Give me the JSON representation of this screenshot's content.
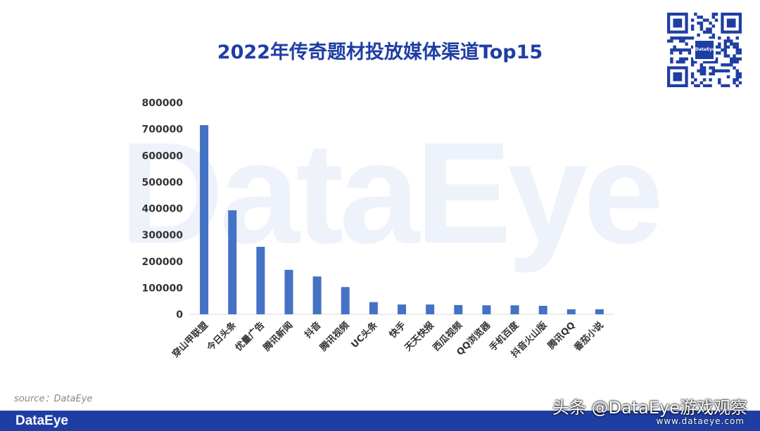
{
  "watermark": "DataEye",
  "title": "2022年传奇题材投放媒体渠道Top15",
  "source": "source：DataEye",
  "footer": {
    "logo": "DataEye",
    "overlay_text": "头条 @DataEye游戏观察",
    "overlay_url": "www.dataeye.com"
  },
  "qr_code": {
    "logo_text": "DataEye"
  },
  "colors": {
    "bar": "#4472c4",
    "title": "#1f3ea4",
    "footer": "#1f3ea4"
  },
  "chart_data": {
    "type": "bar",
    "title": "2022年传奇题材投放媒体渠道Top15",
    "xlabel": "",
    "ylabel": "",
    "ylim": [
      0,
      800000
    ],
    "yticks": [
      "0",
      "100000",
      "200000",
      "300000",
      "400000",
      "500000",
      "600000",
      "700000",
      "800000"
    ],
    "categories": [
      "穿山甲联盟",
      "今日头条",
      "优量广告",
      "腾讯新闻",
      "抖音",
      "腾讯视频",
      "UC头条",
      "快手",
      "天天快报",
      "西瓜视频",
      "QQ浏览器",
      "手机百度",
      "抖音火山版",
      "腾讯QQ",
      "番茄小说"
    ],
    "values": [
      715000,
      393000,
      255000,
      168000,
      143000,
      103000,
      46000,
      37000,
      37000,
      35000,
      34000,
      34000,
      32000,
      19000,
      19000
    ],
    "grid": false,
    "legend": "none"
  }
}
